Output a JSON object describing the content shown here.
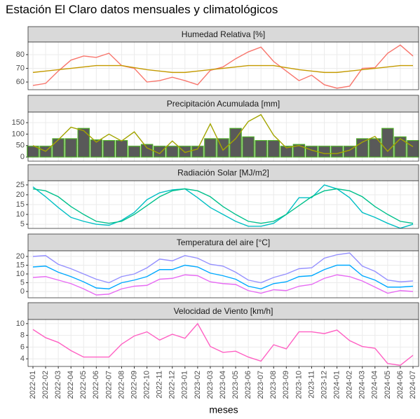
{
  "chart_data": {
    "type": "facet",
    "title": "Estación El Claro datos mensuales y climatológicos",
    "x_label": "meses",
    "categories": [
      "2022-01",
      "2022-02",
      "2022-03",
      "2022-04",
      "2022-05",
      "2022-06",
      "2022-07",
      "2022-08",
      "2022-09",
      "2022-10",
      "2022-11",
      "2022-12",
      "2023-01",
      "2023-02",
      "2023-03",
      "2023-04",
      "2023-05",
      "2023-06",
      "2023-07",
      "2023-08",
      "2023-09",
      "2023-10",
      "2023-11",
      "2023-12",
      "2024-01",
      "2024-02",
      "2024-03",
      "2024-04",
      "2024-05",
      "2024-06",
      "2024-07"
    ],
    "grid": true,
    "panels": [
      {
        "title": "Humedad Relativa [%]",
        "ylim": [
          54.4,
          89.2
        ],
        "yticks": [
          60,
          70,
          80
        ],
        "series": [
          {
            "type": "line",
            "color": "#f8766d",
            "values": [
              57.5,
              59,
              68,
              76,
              79,
              78,
              81,
              72,
              70,
              60,
              61,
              63.5,
              61,
              58,
              68.5,
              71,
              77,
              82,
              85.5,
              75,
              68,
              61,
              65,
              58,
              55.5,
              57,
              70,
              70.5,
              81,
              87,
              79
            ]
          },
          {
            "type": "line",
            "color": "#c49a00",
            "values": [
              67,
              68,
              69,
              70,
              71,
              72,
              72,
              72,
              70.5,
              69,
              68,
              67,
              67,
              68,
              69,
              70,
              71,
              72,
              72,
              72,
              70.5,
              69,
              68,
              67,
              67,
              68,
              69,
              70,
              71,
              72,
              72
            ]
          }
        ]
      },
      {
        "title": "Precipitación Acumulada [mm]",
        "ylim": [
          -18,
          196
        ],
        "yticks": [
          0,
          50,
          100,
          150
        ],
        "series": [
          {
            "type": "bar",
            "color": "#595959",
            "edgecolor": "#4dac26",
            "values": [
              47,
              47,
              80,
              80,
              125,
              75,
              72,
              72,
              47,
              55,
              47,
              47,
              47,
              47,
              80,
              80,
              125,
              88,
              72,
              72,
              47,
              55,
              47,
              47,
              47,
              47,
              80,
              80,
              125,
              88,
              72
            ]
          },
          {
            "type": "line",
            "color": "#a3a500",
            "values": [
              50,
              25,
              75,
              130,
              115,
              65,
              100,
              70,
              110,
              40,
              15,
              70,
              20,
              35,
              145,
              30,
              80,
              155,
              185,
              95,
              40,
              50,
              30,
              15,
              15,
              30,
              65,
              90,
              25,
              80,
              45
            ]
          }
        ]
      },
      {
        "title": "Radiación Solar [MJ/m2]",
        "ylim": [
          2.9,
          27.1
        ],
        "yticks": [
          5,
          10,
          15,
          20,
          25
        ],
        "series": [
          {
            "type": "line",
            "color": "#00bfc4",
            "values": [
              24,
              19,
              13.5,
              8.5,
              6.5,
              5,
              4.5,
              7,
              11,
              17.5,
              21,
              22.5,
              23,
              18.5,
              13.5,
              10,
              6.5,
              4,
              4,
              5.5,
              10,
              18.5,
              18.5,
              25,
              23,
              18.5,
              11,
              8.5,
              5.5,
              3,
              5
            ]
          },
          {
            "type": "line",
            "color": "#00c08b",
            "values": [
              23,
              22,
              19,
              14,
              10,
              6.5,
              5.5,
              6.5,
              10,
              14.5,
              19,
              22,
              23,
              22,
              19,
              14,
              10,
              6.5,
              5.5,
              6.5,
              10,
              14.5,
              19,
              22,
              23,
              22,
              19,
              14,
              10,
              6.5,
              5.5
            ]
          }
        ]
      },
      {
        "title": "Temperatura del aire [°C]",
        "ylim": [
          -3.6,
          23.2
        ],
        "yticks": [
          0,
          5,
          10,
          15,
          20
        ],
        "series": [
          {
            "type": "line",
            "color": "#9590ff",
            "values": [
              20,
              20.5,
              15.5,
              13,
              10,
              7,
              5,
              8.5,
              10,
              13.5,
              18.5,
              17.5,
              20.5,
              19,
              15.5,
              14.5,
              11,
              6.5,
              5,
              8,
              10,
              13,
              13.5,
              19,
              21,
              22,
              14.5,
              11.5,
              6.5,
              5.5,
              6
            ]
          },
          {
            "type": "line",
            "color": "#00a9ff",
            "values": [
              14,
              14.5,
              11,
              8.5,
              5.5,
              2,
              1.5,
              5,
              6.5,
              8.5,
              12.5,
              12.5,
              15,
              14,
              10.5,
              9,
              7,
              3,
              1.5,
              4.5,
              5.5,
              8.5,
              9,
              12.5,
              15,
              15,
              9,
              6.5,
              2.5,
              2.5,
              3
            ]
          },
          {
            "type": "line",
            "color": "#e76bf3",
            "values": [
              8,
              8.5,
              6.5,
              4.5,
              1.5,
              -2,
              -1.5,
              1.5,
              3,
              3.5,
              7,
              7.5,
              9.5,
              9,
              5.5,
              4.5,
              4,
              0.5,
              -1,
              1,
              0.5,
              3,
              4,
              7.5,
              9.5,
              8.5,
              6,
              2.5,
              -1,
              0.5,
              0
            ]
          }
        ]
      },
      {
        "title": "Velocidad de Viento [km/h]",
        "ylim": [
          2.7,
          10.7
        ],
        "yticks": [
          4,
          6,
          8,
          10
        ],
        "series": [
          {
            "type": "line",
            "color": "#ff61c3",
            "values": [
              9,
              7.6,
              6.8,
              5.4,
              4.3,
              4.3,
              4.3,
              6.5,
              7.9,
              8.6,
              7.2,
              8.2,
              7.5,
              10,
              6.1,
              5.1,
              5.3,
              4.3,
              3.6,
              6.4,
              5.7,
              8.6,
              8.6,
              8.3,
              8.9,
              7.1,
              6.1,
              5.8,
              3.2,
              2.9,
              4.6
            ]
          }
        ]
      }
    ]
  }
}
